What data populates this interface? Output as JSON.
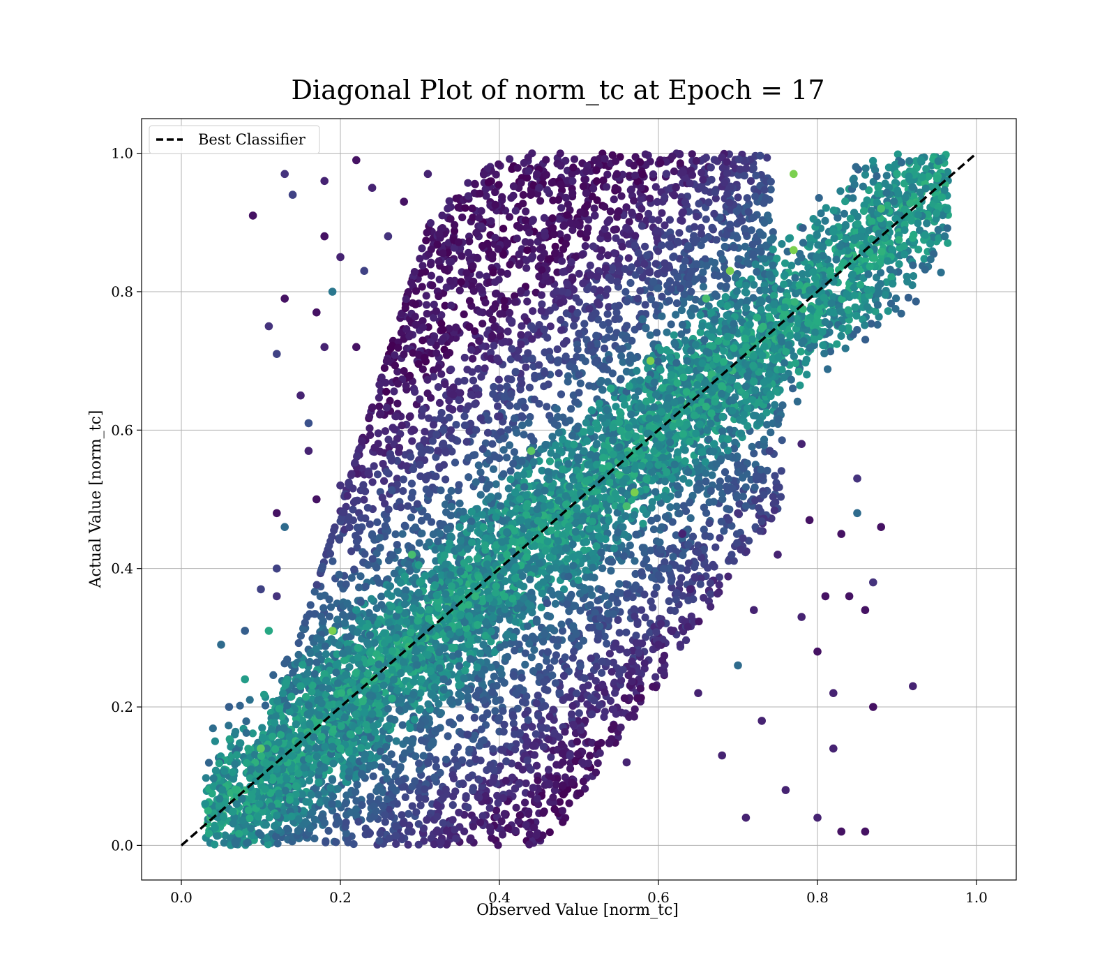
{
  "chart_data": {
    "type": "scatter",
    "title": "Diagonal Plot of norm_tc at Epoch = 17",
    "xlabel": "Observed Value [norm_tc]",
    "ylabel": "Actual Value [norm_tc]",
    "xlim": [
      -0.05,
      1.05
    ],
    "ylim": [
      -0.05,
      1.05
    ],
    "xticks": [
      0.0,
      0.2,
      0.4,
      0.6,
      0.8,
      1.0
    ],
    "yticks": [
      0.0,
      0.2,
      0.4,
      0.6,
      0.8,
      1.0
    ],
    "xtick_labels": [
      "0.0",
      "0.2",
      "0.4",
      "0.6",
      "0.8",
      "1.0"
    ],
    "ytick_labels": [
      "0.0",
      "0.2",
      "0.4",
      "0.6",
      "0.8",
      "1.0"
    ],
    "grid": true,
    "legend": {
      "placement": "top-left",
      "entries": [
        "Best Classifier"
      ]
    },
    "colormap": "viridis",
    "reference_line": {
      "name": "Best Classifier",
      "x": [
        0.0,
        1.0
      ],
      "y": [
        0.0,
        1.0
      ],
      "color": "#000000",
      "style": "dashed"
    },
    "series": [
      {
        "points": [
          [
            0.03,
            0.06,
            0.5
          ],
          [
            0.05,
            0.29,
            0.35
          ],
          [
            0.06,
            0.2,
            0.3
          ],
          [
            0.08,
            0.24,
            0.55
          ],
          [
            0.08,
            0.31,
            0.3
          ],
          [
            0.09,
            0.91,
            0.05
          ],
          [
            0.1,
            0.37,
            0.2
          ],
          [
            0.11,
            0.75,
            0.15
          ],
          [
            0.11,
            0.31,
            0.6
          ],
          [
            0.12,
            0.71,
            0.2
          ],
          [
            0.12,
            0.48,
            0.05
          ],
          [
            0.12,
            0.4,
            0.2
          ],
          [
            0.12,
            0.36,
            0.15
          ],
          [
            0.13,
            0.97,
            0.15
          ],
          [
            0.13,
            0.79,
            0.05
          ],
          [
            0.13,
            0.46,
            0.35
          ],
          [
            0.14,
            0.94,
            0.2
          ],
          [
            0.15,
            0.65,
            0.1
          ],
          [
            0.16,
            0.61,
            0.25
          ],
          [
            0.16,
            0.57,
            0.1
          ],
          [
            0.17,
            0.77,
            0.05
          ],
          [
            0.17,
            0.5,
            0.05
          ],
          [
            0.18,
            0.88,
            0.05
          ],
          [
            0.18,
            0.72,
            0.1
          ],
          [
            0.18,
            0.96,
            0.1
          ],
          [
            0.19,
            0.8,
            0.4
          ],
          [
            0.19,
            0.31,
            0.8
          ],
          [
            0.1,
            0.14,
            0.75
          ],
          [
            0.2,
            0.85,
            0.1
          ],
          [
            0.2,
            0.52,
            0.15
          ],
          [
            0.21,
            0.47,
            0.2
          ],
          [
            0.22,
            0.72,
            0.05
          ],
          [
            0.22,
            0.99,
            0.05
          ],
          [
            0.23,
            0.83,
            0.2
          ],
          [
            0.24,
            0.95,
            0.1
          ],
          [
            0.25,
            0.43,
            0.3
          ],
          [
            0.26,
            0.88,
            0.15
          ],
          [
            0.27,
            0.62,
            0.1
          ],
          [
            0.28,
            0.93,
            0.05
          ],
          [
            0.29,
            0.42,
            0.7
          ],
          [
            0.3,
            0.55,
            0.2
          ],
          [
            0.31,
            0.97,
            0.1
          ],
          [
            0.12,
            0.11,
            0.5
          ],
          [
            0.15,
            0.23,
            0.55
          ],
          [
            0.16,
            0.14,
            0.45
          ],
          [
            0.2,
            0.14,
            0.6
          ],
          [
            0.22,
            0.34,
            0.5
          ],
          [
            0.24,
            0.19,
            0.45
          ],
          [
            0.27,
            0.3,
            0.5
          ],
          [
            0.3,
            0.38,
            0.55
          ],
          [
            0.33,
            0.24,
            0.35
          ],
          [
            0.35,
            0.46,
            0.5
          ],
          [
            0.36,
            0.16,
            0.2
          ],
          [
            0.38,
            0.29,
            0.4
          ],
          [
            0.4,
            0.62,
            0.15
          ],
          [
            0.41,
            0.87,
            0.05
          ],
          [
            0.42,
            0.51,
            0.5
          ],
          [
            0.44,
            0.57,
            0.75
          ],
          [
            0.44,
            0.75,
            0.2
          ],
          [
            0.45,
            0.95,
            0.1
          ],
          [
            0.46,
            0.35,
            0.25
          ],
          [
            0.48,
            0.21,
            0.15
          ],
          [
            0.5,
            0.42,
            0.5
          ],
          [
            0.5,
            0.68,
            0.25
          ],
          [
            0.52,
            0.91,
            0.1
          ],
          [
            0.54,
            0.66,
            0.6
          ],
          [
            0.54,
            0.5,
            0.55
          ],
          [
            0.56,
            0.12,
            0.1
          ],
          [
            0.56,
            0.49,
            0.7
          ],
          [
            0.57,
            0.51,
            0.8
          ],
          [
            0.58,
            0.76,
            0.35
          ],
          [
            0.59,
            0.7,
            0.8
          ],
          [
            0.6,
            0.29,
            0.1
          ],
          [
            0.61,
            0.97,
            0.15
          ],
          [
            0.62,
            0.64,
            0.45
          ],
          [
            0.63,
            0.45,
            0.1
          ],
          [
            0.64,
            0.37,
            0.1
          ],
          [
            0.65,
            0.22,
            0.1
          ],
          [
            0.66,
            0.79,
            0.7
          ],
          [
            0.67,
            0.58,
            0.5
          ],
          [
            0.68,
            0.13,
            0.1
          ],
          [
            0.69,
            0.83,
            0.8
          ],
          [
            0.7,
            0.26,
            0.35
          ],
          [
            0.7,
            0.48,
            0.15
          ],
          [
            0.71,
            0.04,
            0.1
          ],
          [
            0.72,
            0.34,
            0.1
          ],
          [
            0.72,
            0.67,
            0.55
          ],
          [
            0.73,
            0.18,
            0.1
          ],
          [
            0.74,
            0.57,
            0.2
          ],
          [
            0.75,
            0.42,
            0.1
          ],
          [
            0.76,
            0.08,
            0.1
          ],
          [
            0.77,
            0.86,
            0.8
          ],
          [
            0.77,
            0.97,
            0.8
          ],
          [
            0.78,
            0.58,
            0.1
          ],
          [
            0.78,
            0.33,
            0.1
          ],
          [
            0.79,
            0.47,
            0.05
          ],
          [
            0.8,
            0.28,
            0.05
          ],
          [
            0.8,
            0.04,
            0.1
          ],
          [
            0.81,
            0.36,
            0.05
          ],
          [
            0.82,
            0.14,
            0.1
          ],
          [
            0.82,
            0.22,
            0.1
          ],
          [
            0.83,
            0.45,
            0.05
          ],
          [
            0.83,
            0.02,
            0.05
          ],
          [
            0.84,
            0.36,
            0.05
          ],
          [
            0.85,
            0.53,
            0.15
          ],
          [
            0.85,
            0.48,
            0.35
          ],
          [
            0.86,
            0.34,
            0.05
          ],
          [
            0.86,
            0.02,
            0.05
          ],
          [
            0.87,
            0.2,
            0.05
          ],
          [
            0.87,
            0.38,
            0.15
          ],
          [
            0.88,
            0.46,
            0.05
          ],
          [
            0.88,
            0.92,
            0.7
          ],
          [
            0.9,
            0.97,
            0.6
          ],
          [
            0.92,
            0.23,
            0.1
          ],
          [
            0.93,
            0.99,
            0.5
          ],
          [
            0.95,
            0.95,
            0.55
          ],
          [
            0.96,
            0.88,
            0.4
          ]
        ]
      }
    ]
  }
}
